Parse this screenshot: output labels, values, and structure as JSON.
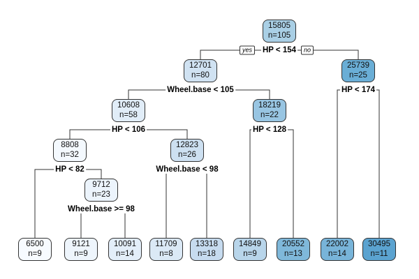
{
  "tree": {
    "branch_labels": {
      "yes": "yes",
      "no": "no"
    },
    "nodes": [
      {
        "id": "root",
        "value": "15805",
        "n": "n=105",
        "color": "#a9cfe5",
        "split": "HP < 154"
      },
      {
        "id": "l",
        "value": "12701",
        "n": "n=80",
        "color": "#d0e2f2",
        "split": "Wheel.base < 105"
      },
      {
        "id": "r",
        "value": "25739",
        "n": "n=25",
        "color": "#6aaed6",
        "split": "HP < 174"
      },
      {
        "id": "ll",
        "value": "10608",
        "n": "n=58",
        "color": "#e1edf8",
        "split": "HP < 106"
      },
      {
        "id": "lr",
        "value": "18219",
        "n": "n=22",
        "color": "#98c5e2",
        "split": "HP < 128"
      },
      {
        "id": "lll",
        "value": "8808",
        "n": "n=32",
        "color": "#f4f9fe",
        "split": "HP < 82"
      },
      {
        "id": "llr",
        "value": "12823",
        "n": "n=26",
        "color": "#cde0f1",
        "split": "Wheel.base < 98"
      },
      {
        "id": "lllr",
        "value": "9712",
        "n": "n=23",
        "color": "#ecf4fc",
        "split": "Wheel.base >= 98"
      },
      {
        "id": "leaf1",
        "value": "6500",
        "n": "n=9",
        "color": "#f7fbff"
      },
      {
        "id": "leaf2",
        "value": "9121",
        "n": "n=9",
        "color": "#eef5fc"
      },
      {
        "id": "leaf3",
        "value": "10091",
        "n": "n=14",
        "color": "#e3eef9"
      },
      {
        "id": "leaf4",
        "value": "11709",
        "n": "n=8",
        "color": "#dbe9f6"
      },
      {
        "id": "leaf5",
        "value": "13318",
        "n": "n=18",
        "color": "#c6dbef"
      },
      {
        "id": "leaf6",
        "value": "14849",
        "n": "n=9",
        "color": "#b8d5ea"
      },
      {
        "id": "leaf7",
        "value": "20552",
        "n": "n=13",
        "color": "#7fb8da"
      },
      {
        "id": "leaf8",
        "value": "22002",
        "n": "n=14",
        "color": "#78b4d9"
      },
      {
        "id": "leaf9",
        "value": "30495",
        "n": "n=11",
        "color": "#5ba3d0"
      }
    ],
    "edges": [
      [
        "root",
        "l",
        "r"
      ],
      [
        "l",
        "ll",
        "lr"
      ],
      [
        "r",
        "leaf8",
        "leaf9"
      ],
      [
        "ll",
        "lll",
        "llr"
      ],
      [
        "lr",
        "leaf6",
        "leaf7"
      ],
      [
        "lll",
        "leaf1",
        "lllr"
      ],
      [
        "llr",
        "leaf4",
        "leaf5"
      ],
      [
        "lllr",
        "leaf2",
        "leaf3"
      ]
    ]
  }
}
